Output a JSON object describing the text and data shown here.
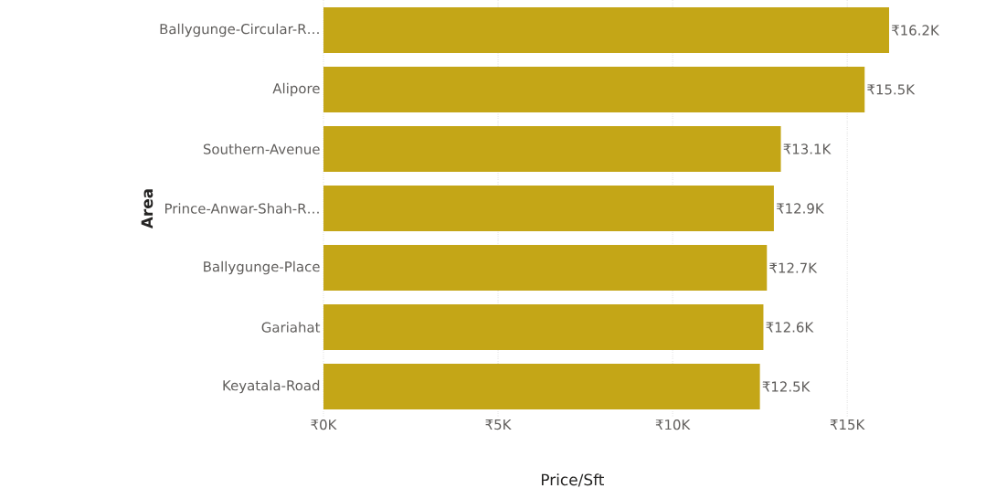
{
  "chart_data": {
    "type": "bar",
    "orientation": "horizontal",
    "xlabel": "Price/Sft",
    "ylabel": "Area",
    "categories": [
      "Ballygunge-Circular-R…",
      "Alipore",
      "Southern-Avenue",
      "Prince-Anwar-Shah-R…",
      "Ballygunge-Place",
      "Gariahat",
      "Keyatala-Road"
    ],
    "values": [
      16200,
      15500,
      13100,
      12900,
      12700,
      12600,
      12500
    ],
    "value_labels": [
      "₹16.2K",
      "₹15.5K",
      "₹13.1K",
      "₹12.9K",
      "₹12.7K",
      "₹12.6K",
      "₹12.5K"
    ],
    "color": "#c4a617",
    "xlim": [
      0,
      16200
    ],
    "xticks": [
      {
        "value": 0,
        "label": "₹0K"
      },
      {
        "value": 5000,
        "label": "₹5K"
      },
      {
        "value": 10000,
        "label": "₹10K"
      },
      {
        "value": 15000,
        "label": "₹15K"
      }
    ],
    "grid": "x"
  }
}
